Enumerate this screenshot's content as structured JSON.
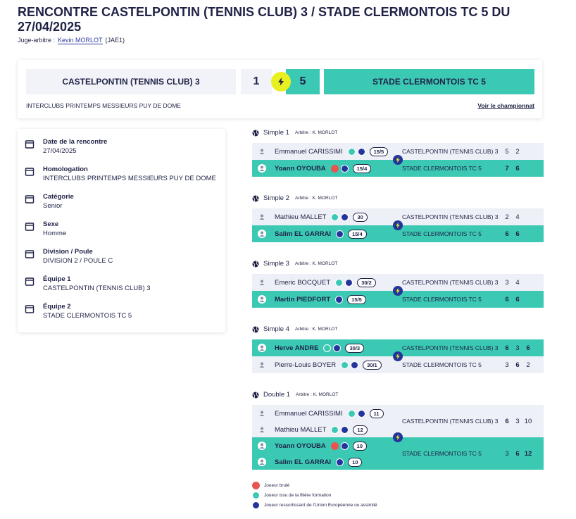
{
  "header": {
    "title": "RENCONTRE CASTELPONTIN (TENNIS CLUB) 3 / STADE CLERMONTOIS TC 5 DU 27/04/2025",
    "referee_label": "Juge-arbitre :",
    "referee_name": "Kevin MORLOT",
    "referee_grade": "(JAE1)"
  },
  "scoreboard": {
    "home_team": "CASTELPONTIN (TENNIS CLUB) 3",
    "home_score": 1,
    "away_score": 5,
    "away_team": "STADE CLERMONTOIS TC 5",
    "competition": "INTERCLUBS PRINTEMPS MESSIEURS PUY DE DOME",
    "link": "Voir le championnat"
  },
  "info": [
    {
      "label": "Date de la rencontre",
      "value": "27/04/2025"
    },
    {
      "label": "Homologation",
      "value": "INTERCLUBS PRINTEMPS MESSIEURS PUY DE DOME"
    },
    {
      "label": "Catégorie",
      "value": "Senior"
    },
    {
      "label": "Sexe",
      "value": "Homme"
    },
    {
      "label": "Division / Poule",
      "value": "DIVISION 2 / POULE C"
    },
    {
      "label": "Équipe 1",
      "value": "CASTELPONTIN (TENNIS CLUB) 3"
    },
    {
      "label": "Équipe 2",
      "value": "STADE CLERMONTOIS TC 5"
    }
  ],
  "matches": [
    {
      "title": "Simple 1",
      "referee": "Arbitre : K. MORLOT",
      "sides": [
        {
          "players": [
            {
              "name": "Emmanuel CARISSIMI",
              "rank": "15/5"
            }
          ],
          "team": "CASTELPONTIN (TENNIS CLUB) 3",
          "sets": [
            5,
            2
          ]
        },
        {
          "players": [
            {
              "name": "Yoann OYOUBA",
              "rank": "15/4"
            }
          ],
          "team": "STADE CLERMONTOIS TC 5",
          "sets": [
            7,
            6
          ]
        }
      ]
    },
    {
      "title": "Simple 2",
      "referee": "Arbitre : K. MORLOT",
      "sides": [
        {
          "players": [
            {
              "name": "Mathieu MALLET",
              "rank": "30"
            }
          ],
          "team": "CASTELPONTIN (TENNIS CLUB) 3",
          "sets": [
            2,
            4
          ]
        },
        {
          "players": [
            {
              "name": "Salim EL GARRAI",
              "rank": "15/4"
            }
          ],
          "team": "STADE CLERMONTOIS TC 5",
          "sets": [
            6,
            6
          ]
        }
      ]
    },
    {
      "title": "Simple 3",
      "referee": "Arbitre : K. MORLOT",
      "sides": [
        {
          "players": [
            {
              "name": "Emeric BOCQUET",
              "rank": "30/2"
            }
          ],
          "team": "CASTELPONTIN (TENNIS CLUB) 3",
          "sets": [
            3,
            4
          ]
        },
        {
          "players": [
            {
              "name": "Martin PIEDFORT",
              "rank": "15/5"
            }
          ],
          "team": "STADE CLERMONTOIS TC 5",
          "sets": [
            6,
            6
          ]
        }
      ]
    },
    {
      "title": "Simple 4",
      "referee": "Arbitre : K. MORLOT",
      "sides": [
        {
          "players": [
            {
              "name": "Herve ANDRE",
              "rank": "30/3"
            }
          ],
          "team": "CASTELPONTIN (TENNIS CLUB) 3",
          "sets": [
            6,
            3,
            6
          ]
        },
        {
          "players": [
            {
              "name": "Pierre-Louis BOYER",
              "rank": "30/1"
            }
          ],
          "team": "STADE CLERMONTOIS TC 5",
          "sets": [
            3,
            6,
            2
          ]
        }
      ]
    },
    {
      "title": "Double 1",
      "referee": "Arbitre : K. MORLOT",
      "sides": [
        {
          "players": [
            {
              "name": "Emmanuel CARISSIMI",
              "rank": "11"
            },
            {
              "name": "Mathieu MALLET",
              "rank": "12"
            }
          ],
          "team": "CASTELPONTIN (TENNIS CLUB) 3",
          "sets": [
            6,
            3,
            10
          ]
        },
        {
          "players": [
            {
              "name": "Yoann OYOUBA",
              "rank": "10"
            },
            {
              "name": "Salim EL GARRAI",
              "rank": "10"
            }
          ],
          "team": "STADE CLERMONTOIS TC 5",
          "sets": [
            3,
            6,
            12
          ]
        }
      ]
    }
  ],
  "legend": [
    "Joueur brulé",
    "Joueur issu de la filière formation",
    "Joueur ressortissant de l'Union Européenne ou assimilé"
  ]
}
